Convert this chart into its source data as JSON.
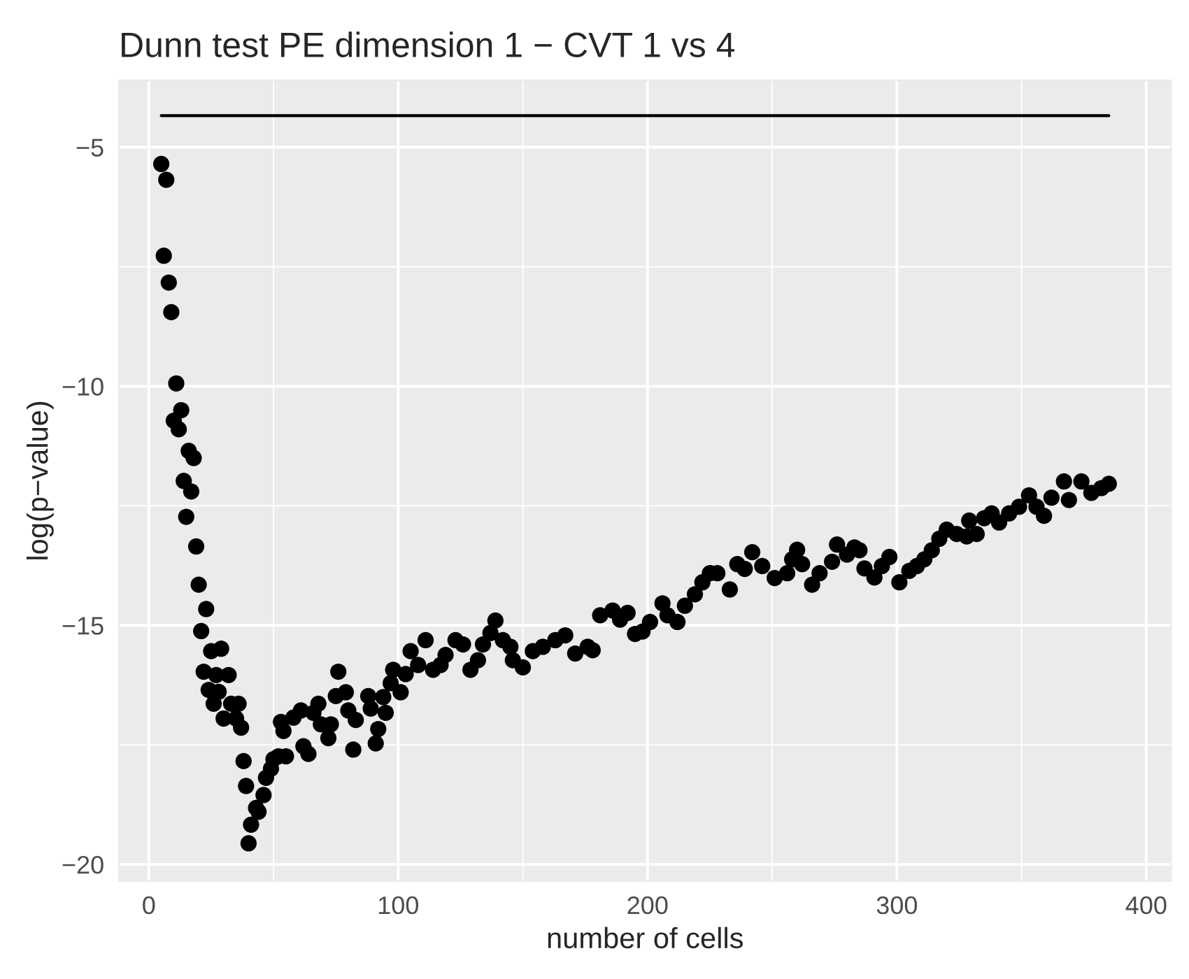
{
  "chart_data": {
    "type": "scatter",
    "title": "Dunn test PE dimension 1 − CVT 1 vs 4",
    "xlabel": "number of cells",
    "ylabel": "log(p−value)",
    "xlim": [
      -12,
      410
    ],
    "ylim": [
      -20.35,
      -3.6
    ],
    "xticks": [
      0,
      100,
      200,
      300,
      400
    ],
    "yticks": [
      -20,
      -15,
      -10,
      -5
    ],
    "grid": true,
    "series": [
      {
        "marker": "circle",
        "color": "#000000",
        "x": [
          5,
          7,
          6,
          8,
          9,
          11,
          13,
          10,
          12,
          16,
          18,
          14,
          17,
          15,
          19,
          20,
          23,
          21,
          25,
          29,
          22,
          27,
          32,
          24,
          28,
          26,
          33,
          36,
          30,
          35,
          37,
          38,
          39,
          40,
          41,
          43,
          44,
          46,
          47,
          49,
          50,
          52,
          54,
          55,
          53,
          58,
          61,
          62,
          64,
          66,
          68,
          69,
          72,
          73,
          75,
          76,
          79,
          80,
          82,
          83,
          88,
          89,
          91,
          92,
          94,
          95,
          97,
          98,
          101,
          103,
          105,
          108,
          111,
          114,
          117,
          119,
          123,
          126,
          129,
          132,
          134,
          137,
          139,
          142,
          145,
          146,
          150,
          154,
          158,
          163,
          167,
          171,
          176,
          178,
          181,
          186,
          189,
          192,
          195,
          198,
          201,
          206,
          208,
          212,
          215,
          219,
          222,
          225,
          228,
          233,
          236,
          239,
          242,
          246,
          251,
          256,
          258,
          260,
          262,
          266,
          269,
          274,
          276,
          280,
          283,
          285,
          287,
          291,
          294,
          297,
          301,
          305,
          308,
          311,
          314,
          317,
          320,
          324,
          328,
          329,
          332,
          335,
          338,
          341,
          345,
          349,
          353,
          356,
          359,
          362,
          367,
          369,
          374,
          378,
          382,
          385
        ],
        "values": [
          -5.35,
          -5.68,
          -7.27,
          -7.83,
          -8.45,
          -9.94,
          -10.5,
          -10.72,
          -10.9,
          -11.35,
          -11.5,
          -11.98,
          -12.2,
          -12.73,
          -13.35,
          -14.15,
          -14.66,
          -15.12,
          -15.54,
          -15.49,
          -15.97,
          -16.04,
          -16.04,
          -16.35,
          -16.39,
          -16.64,
          -16.64,
          -16.64,
          -16.95,
          -16.95,
          -17.14,
          -17.84,
          -18.36,
          -19.56,
          -19.17,
          -18.82,
          -18.9,
          -18.55,
          -18.19,
          -18.0,
          -17.8,
          -17.74,
          -17.21,
          -17.74,
          -17.02,
          -16.93,
          -16.78,
          -17.53,
          -17.69,
          -16.83,
          -16.64,
          -17.07,
          -17.36,
          -17.07,
          -16.48,
          -15.97,
          -16.4,
          -16.78,
          -17.6,
          -16.98,
          -16.48,
          -16.74,
          -17.47,
          -17.17,
          -16.5,
          -16.83,
          -16.21,
          -15.93,
          -16.4,
          -16.02,
          -15.54,
          -15.83,
          -15.31,
          -15.93,
          -15.83,
          -15.62,
          -15.31,
          -15.4,
          -15.93,
          -15.73,
          -15.4,
          -15.16,
          -14.9,
          -15.31,
          -15.45,
          -15.73,
          -15.88,
          -15.54,
          -15.45,
          -15.31,
          -15.21,
          -15.59,
          -15.45,
          -15.52,
          -14.79,
          -14.69,
          -14.88,
          -14.74,
          -15.18,
          -15.13,
          -14.93,
          -14.54,
          -14.79,
          -14.93,
          -14.59,
          -14.35,
          -14.1,
          -13.91,
          -13.91,
          -14.25,
          -13.72,
          -13.82,
          -13.47,
          -13.76,
          -14.01,
          -13.91,
          -13.62,
          -13.42,
          -13.72,
          -14.15,
          -13.91,
          -13.67,
          -13.31,
          -13.52,
          -13.37,
          -13.43,
          -13.81,
          -14.0,
          -13.76,
          -13.57,
          -14.1,
          -13.86,
          -13.76,
          -13.62,
          -13.43,
          -13.19,
          -13.0,
          -13.09,
          -13.14,
          -12.81,
          -13.09,
          -12.76,
          -12.66,
          -12.85,
          -12.66,
          -12.52,
          -12.28,
          -12.52,
          -12.71,
          -12.33,
          -11.99,
          -12.38,
          -11.99,
          -12.23,
          -12.13,
          -12.04
        ]
      },
      {
        "type": "line",
        "marker": "none",
        "color": "#000000",
        "x": [
          5,
          385
        ],
        "values": [
          -4.34,
          -4.34
        ]
      }
    ]
  }
}
